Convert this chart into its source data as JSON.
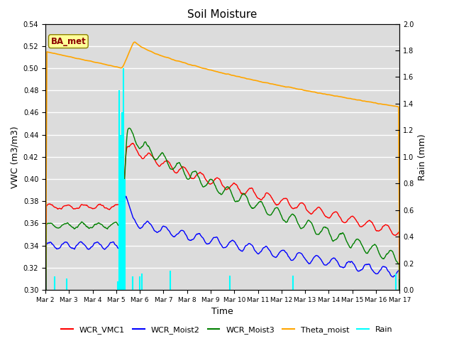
{
  "title": "Soil Moisture",
  "ylabel_left": "VWC (m3/m3)",
  "ylabel_right": "Rain (mm)",
  "xlabel": "Time",
  "ylim_left": [
    0.3,
    0.54
  ],
  "ylim_right": [
    0.0,
    2.0
  ],
  "yticks_left": [
    0.3,
    0.32,
    0.34,
    0.36,
    0.38,
    0.4,
    0.42,
    0.44,
    0.46,
    0.48,
    0.5,
    0.52,
    0.54
  ],
  "yticks_right": [
    0.0,
    0.2,
    0.4,
    0.6,
    0.8,
    1.0,
    1.2,
    1.4,
    1.6,
    1.8,
    2.0
  ],
  "background_color": "#dcdcdc",
  "grid_color": "#ffffff",
  "site_label": "BA_met",
  "legend_entries": [
    "WCR_VMC1",
    "WCR_Moist2",
    "WCR_Moist3",
    "Theta_moist",
    "Rain"
  ],
  "line_colors": [
    "red",
    "blue",
    "green",
    "orange",
    "cyan"
  ],
  "n_points": 720,
  "xtick_labels": [
    "Mar 2",
    "Mar 3",
    "Mar 4",
    "Mar 5",
    "Mar 6",
    "Mar 7",
    "Mar 8",
    "Mar 9",
    "Mar 10",
    "Mar 11",
    "Mar 12",
    "Mar 13",
    "Mar 14",
    "Mar 15",
    "Mar 16",
    "Mar 17"
  ],
  "rain_times": [
    0.4,
    0.9,
    3.05,
    3.12,
    3.18,
    3.25,
    3.32,
    3.38,
    3.7,
    4.0,
    4.1,
    5.3,
    7.8,
    10.5,
    14.85
  ],
  "rain_heights": [
    0.012,
    0.01,
    0.008,
    0.18,
    0.14,
    0.16,
    0.2,
    0.1,
    0.012,
    0.012,
    0.015,
    0.017,
    0.013,
    0.013,
    0.015
  ]
}
